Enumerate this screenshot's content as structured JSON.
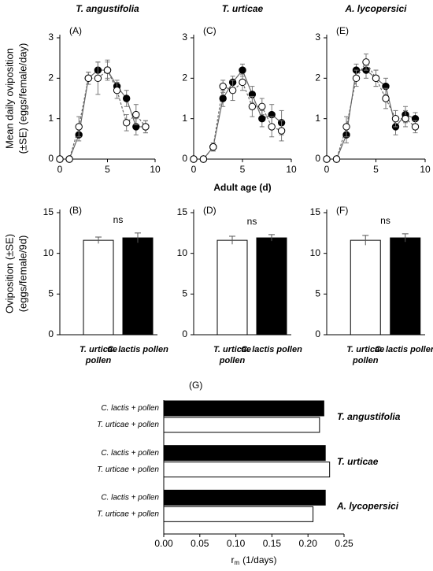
{
  "chart_data": [
    {
      "type": "line",
      "title": "T. angustifolia",
      "panel_label": "(A)",
      "ylabel": [
        "Mean daily oviposition",
        "(±SE) (eggs/female/day)"
      ],
      "x": [
        0,
        1,
        2,
        3,
        4,
        5,
        6,
        7,
        8,
        9
      ],
      "xlim": [
        0,
        10
      ],
      "xticks": [
        0,
        5,
        10
      ],
      "ylim": [
        0,
        3
      ],
      "yticks": [
        0,
        1,
        2,
        3
      ],
      "series": [
        {
          "color": "#000000",
          "linestyle": "solid",
          "values": [
            0,
            0,
            0.6,
            2.0,
            2.2,
            2.2,
            1.8,
            1.5,
            0.8,
            0.8
          ],
          "errors": [
            0,
            0,
            0.15,
            0.15,
            0.2,
            0.2,
            0.15,
            0.2,
            0.2,
            0.15
          ]
        },
        {
          "color": "#ffffff",
          "linestyle": "dashed",
          "values": [
            0,
            0,
            0.8,
            2.0,
            2.0,
            2.2,
            1.7,
            0.9,
            1.1,
            0.8
          ],
          "errors": [
            0,
            0,
            0.25,
            0.15,
            0.4,
            0.25,
            0.2,
            0.2,
            0.25,
            0.15
          ]
        }
      ]
    },
    {
      "type": "line",
      "title": "T. urticae",
      "panel_label": "(C)",
      "xlabel": "Adult age (d)",
      "x": [
        0,
        1,
        2,
        3,
        4,
        5,
        6,
        7,
        8,
        9
      ],
      "xlim": [
        0,
        10
      ],
      "xticks": [
        0,
        5,
        10
      ],
      "ylim": [
        0,
        3
      ],
      "yticks": [
        0,
        1,
        2,
        3
      ],
      "series": [
        {
          "color": "#000000",
          "linestyle": "solid",
          "values": [
            0,
            0,
            0.3,
            1.5,
            1.9,
            2.2,
            1.6,
            1.0,
            1.1,
            0.9
          ],
          "errors": [
            0,
            0,
            0.1,
            0.2,
            0.15,
            0.15,
            0.2,
            0.2,
            0.25,
            0.3
          ]
        },
        {
          "color": "#ffffff",
          "linestyle": "dashed",
          "values": [
            0,
            0,
            0.3,
            1.8,
            1.7,
            1.9,
            1.3,
            1.3,
            0.8,
            0.7
          ],
          "errors": [
            0,
            0,
            0.1,
            0.15,
            0.25,
            0.2,
            0.25,
            0.2,
            0.25,
            0.25
          ]
        }
      ]
    },
    {
      "type": "line",
      "title": "A. lycopersici",
      "panel_label": "(E)",
      "x": [
        0,
        1,
        2,
        3,
        4,
        5,
        6,
        7,
        8,
        9
      ],
      "xlim": [
        0,
        10
      ],
      "xticks": [
        0,
        5,
        10
      ],
      "ylim": [
        0,
        3
      ],
      "yticks": [
        0,
        1,
        2,
        3
      ],
      "series": [
        {
          "color": "#000000",
          "linestyle": "solid",
          "values": [
            0,
            0,
            0.6,
            2.2,
            2.2,
            2.0,
            1.8,
            0.8,
            1.1,
            1.0
          ],
          "errors": [
            0,
            0,
            0.2,
            0.15,
            0.2,
            0.2,
            0.2,
            0.2,
            0.2,
            0.15
          ]
        },
        {
          "color": "#ffffff",
          "linestyle": "dashed",
          "values": [
            0,
            0,
            0.8,
            2.0,
            2.4,
            2.0,
            1.5,
            1.0,
            1.0,
            0.8
          ],
          "errors": [
            0,
            0,
            0.25,
            0.2,
            0.2,
            0.2,
            0.25,
            0.2,
            0.2,
            0.15
          ]
        }
      ]
    },
    {
      "type": "bar",
      "panel_label": "(B)",
      "ylabel": [
        "Oviposition (±SE)",
        "(eggs/female/9d)"
      ],
      "annotation": "ns",
      "categories": [
        "T. urticae pollen",
        "C. lactis pollen"
      ],
      "values": [
        11.6,
        11.9
      ],
      "errors": [
        0.4,
        0.6
      ],
      "colors": [
        "#ffffff",
        "#000000"
      ],
      "ylim": [
        0,
        15
      ],
      "yticks": [
        0,
        5,
        10,
        15
      ]
    },
    {
      "type": "bar",
      "panel_label": "(D)",
      "annotation": "ns",
      "categories": [
        "T. urticae pollen",
        "C. lactis pollen"
      ],
      "values": [
        11.6,
        11.9
      ],
      "errors": [
        0.5,
        0.4
      ],
      "colors": [
        "#ffffff",
        "#000000"
      ],
      "ylim": [
        0,
        15
      ],
      "yticks": [
        0,
        5,
        10,
        15
      ]
    },
    {
      "type": "bar",
      "panel_label": "(F)",
      "annotation": "ns",
      "categories": [
        "T. urticae pollen",
        "C. lactis pollen"
      ],
      "values": [
        11.6,
        11.9
      ],
      "errors": [
        0.6,
        0.5
      ],
      "colors": [
        "#ffffff",
        "#000000"
      ],
      "ylim": [
        0,
        15
      ],
      "yticks": [
        0,
        5,
        10,
        15
      ]
    },
    {
      "type": "hbar",
      "panel_label": "(G)",
      "xlabel": "r",
      "xlabel_subscript": "m",
      "xlabel_unit": "(1/days)",
      "categories": [
        "T. angustifolia",
        "T. urticae",
        "A. lycopersici"
      ],
      "series": [
        {
          "name": "C. lactis + pollen",
          "color": "#000000",
          "values": [
            0.222,
            0.224,
            0.224
          ]
        },
        {
          "name": "T. urticae + pollen",
          "color": "#ffffff",
          "values": [
            0.216,
            0.23,
            0.207
          ]
        }
      ],
      "xlim": [
        0,
        0.25
      ],
      "xticks": [
        {
          "value": 0,
          "label": "0.00"
        },
        0.05,
        {
          "value": 0.1,
          "label": "0.10"
        },
        0.15,
        {
          "value": 0.2,
          "label": "0.20"
        },
        0.25
      ]
    }
  ]
}
